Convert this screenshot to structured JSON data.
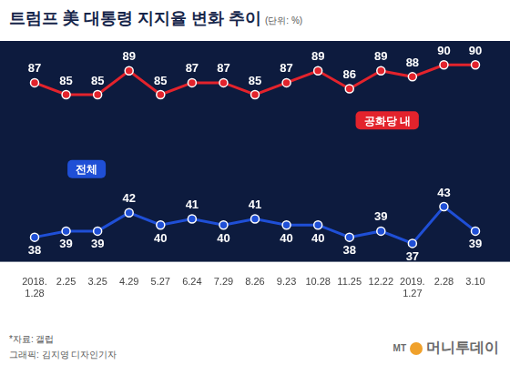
{
  "chart_data": {
    "type": "line",
    "title": "트럼프 美 대통령 지지율 변화 추이",
    "subtitle": "(단위: %)",
    "categories": [
      "2018.1.28",
      "2.25",
      "3.25",
      "4.29",
      "5.27",
      "6.24",
      "7.29",
      "8.26",
      "9.23",
      "10.28",
      "11.25",
      "12.22",
      "2019.1.27",
      "2.28",
      "3.10"
    ],
    "series": [
      {
        "name": "공화당 내",
        "color": "#e3232c",
        "values": [
          87,
          85,
          85,
          89,
          85,
          87,
          87,
          85,
          87,
          89,
          86,
          89,
          88,
          90,
          90
        ]
      },
      {
        "name": "전체",
        "color": "#1f4fd6",
        "axis": "y2",
        "values": [
          38,
          39,
          39,
          42,
          40,
          41,
          40,
          41,
          40,
          40,
          38,
          39,
          37,
          43,
          39
        ]
      }
    ],
    "ylim": [
      57,
      94
    ],
    "yticks": [],
    "y2lim": [
      34,
      70
    ],
    "y2ticks": [],
    "grid": false,
    "data_labels": true,
    "tick_labels": "x",
    "marker": "circle",
    "annotations": [
      "*자료: 갤럽",
      "그래픽: 김지영 디자인기자",
      "MT",
      "머니투데이"
    ]
  }
}
